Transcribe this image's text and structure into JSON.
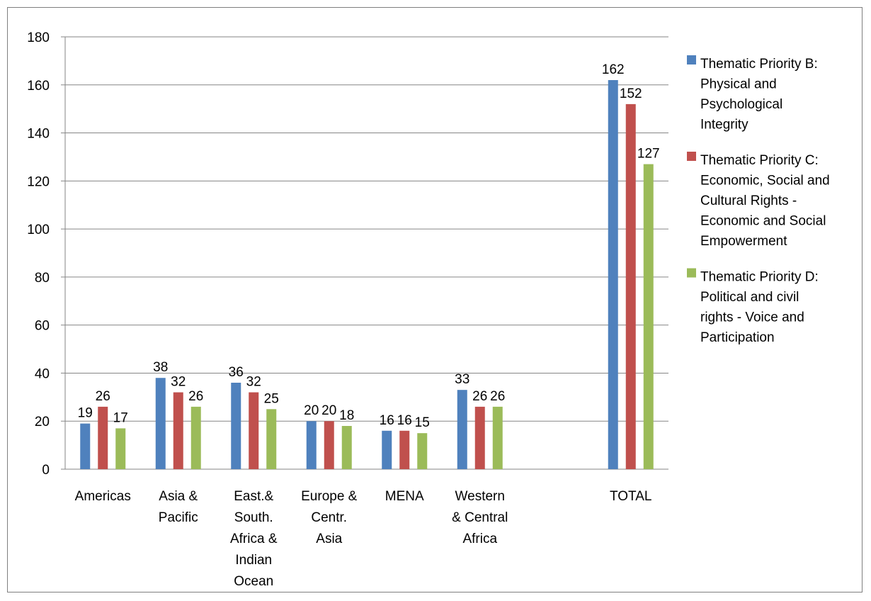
{
  "chart_data": {
    "type": "bar",
    "categories": [
      [
        "Americas"
      ],
      [
        "Asia &",
        "Pacific"
      ],
      [
        "East.&",
        "South.",
        "Africa &",
        "Indian",
        "Ocean"
      ],
      [
        "Europe &",
        "Centr.",
        "Asia"
      ],
      [
        "MENA"
      ],
      [
        "Western",
        "& Central",
        "Africa"
      ],
      [],
      [
        "TOTAL"
      ]
    ],
    "series": [
      {
        "name": [
          "Thematic Priority B:",
          "Physical and",
          "Psychological",
          "Integrity"
        ],
        "color": "#4f81bd",
        "values": [
          19,
          38,
          36,
          20,
          16,
          33,
          null,
          162
        ]
      },
      {
        "name": [
          "Thematic Priority C:",
          "Economic, Social and",
          "Cultural Rights -",
          "Economic and Social",
          "Empowerment"
        ],
        "color": "#c0504d",
        "values": [
          26,
          32,
          32,
          20,
          16,
          26,
          null,
          152
        ]
      },
      {
        "name": [
          "Thematic Priority D:",
          "Political and civil",
          "rights - Voice and",
          "Participation"
        ],
        "color": "#9bbb59",
        "values": [
          17,
          26,
          25,
          18,
          15,
          26,
          null,
          127
        ]
      }
    ],
    "ylim": [
      0,
      180
    ],
    "yticks": [
      0,
      20,
      40,
      60,
      80,
      100,
      120,
      140,
      160,
      180
    ],
    "grid": true,
    "legend": "right",
    "data_labels": true
  }
}
